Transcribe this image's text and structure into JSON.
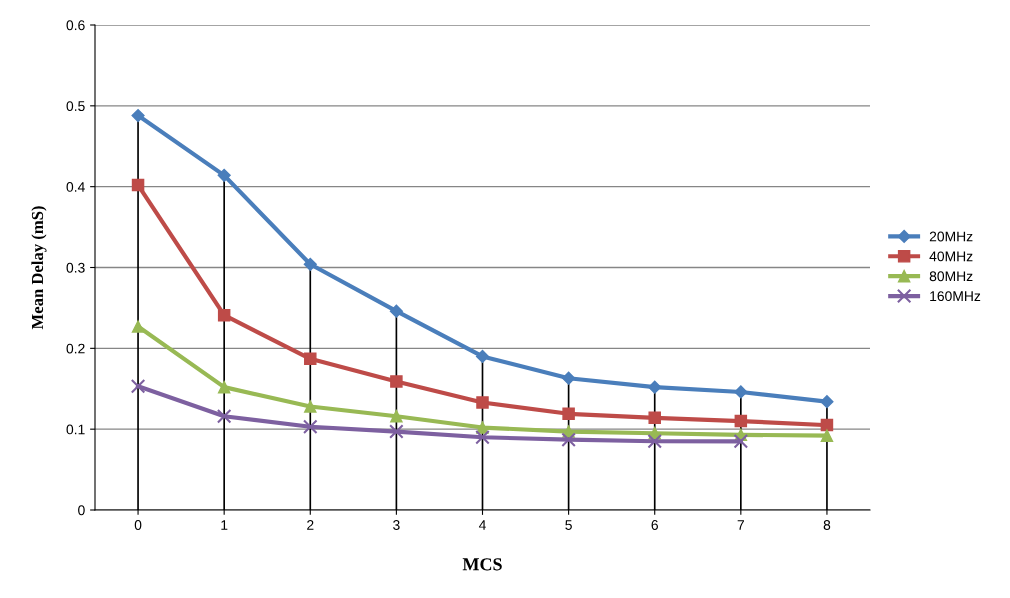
{
  "chart_data": {
    "type": "line",
    "xlabel": "MCS",
    "ylabel": "Mean Delay (mS)",
    "categories": [
      "0",
      "1",
      "2",
      "3",
      "4",
      "5",
      "6",
      "7",
      "8"
    ],
    "series": [
      {
        "name": "20MHz",
        "color": "#4a7ebb",
        "marker": "diamond",
        "values": [
          0.488,
          0.414,
          0.304,
          0.246,
          0.19,
          0.163,
          0.152,
          0.146,
          0.134
        ],
        "errors": [
          [
            0.488,
            0
          ],
          [
            0.414,
            0
          ],
          [
            0.304,
            0
          ],
          [
            0.246,
            0
          ],
          [
            0.19,
            0
          ],
          [
            0.163,
            0
          ],
          [
            0.152,
            0
          ],
          [
            0.146,
            0
          ],
          [
            0.134,
            0
          ]
        ]
      },
      {
        "name": "40MHz",
        "color": "#be4b48",
        "marker": "square",
        "values": [
          0.402,
          0.241,
          0.187,
          0.159,
          0.133,
          0.119,
          0.114,
          0.11,
          0.105
        ]
      },
      {
        "name": "80MHz",
        "color": "#98b954",
        "marker": "triangle",
        "values": [
          0.227,
          0.152,
          0.128,
          0.116,
          0.102,
          0.097,
          0.095,
          0.093,
          0.092
        ]
      },
      {
        "name": "160MHz",
        "color": "#7d60a0",
        "marker": "cross",
        "values": [
          0.153,
          0.116,
          0.103,
          0.097,
          0.09,
          0.087,
          0.085,
          0.085,
          null
        ]
      }
    ],
    "ylim": [
      0,
      0.6
    ],
    "yticks": [
      0,
      0.1,
      0.2,
      0.3,
      0.4,
      0.5,
      0.6
    ],
    "grid": "y",
    "legend": "right",
    "line_style": "solid"
  }
}
